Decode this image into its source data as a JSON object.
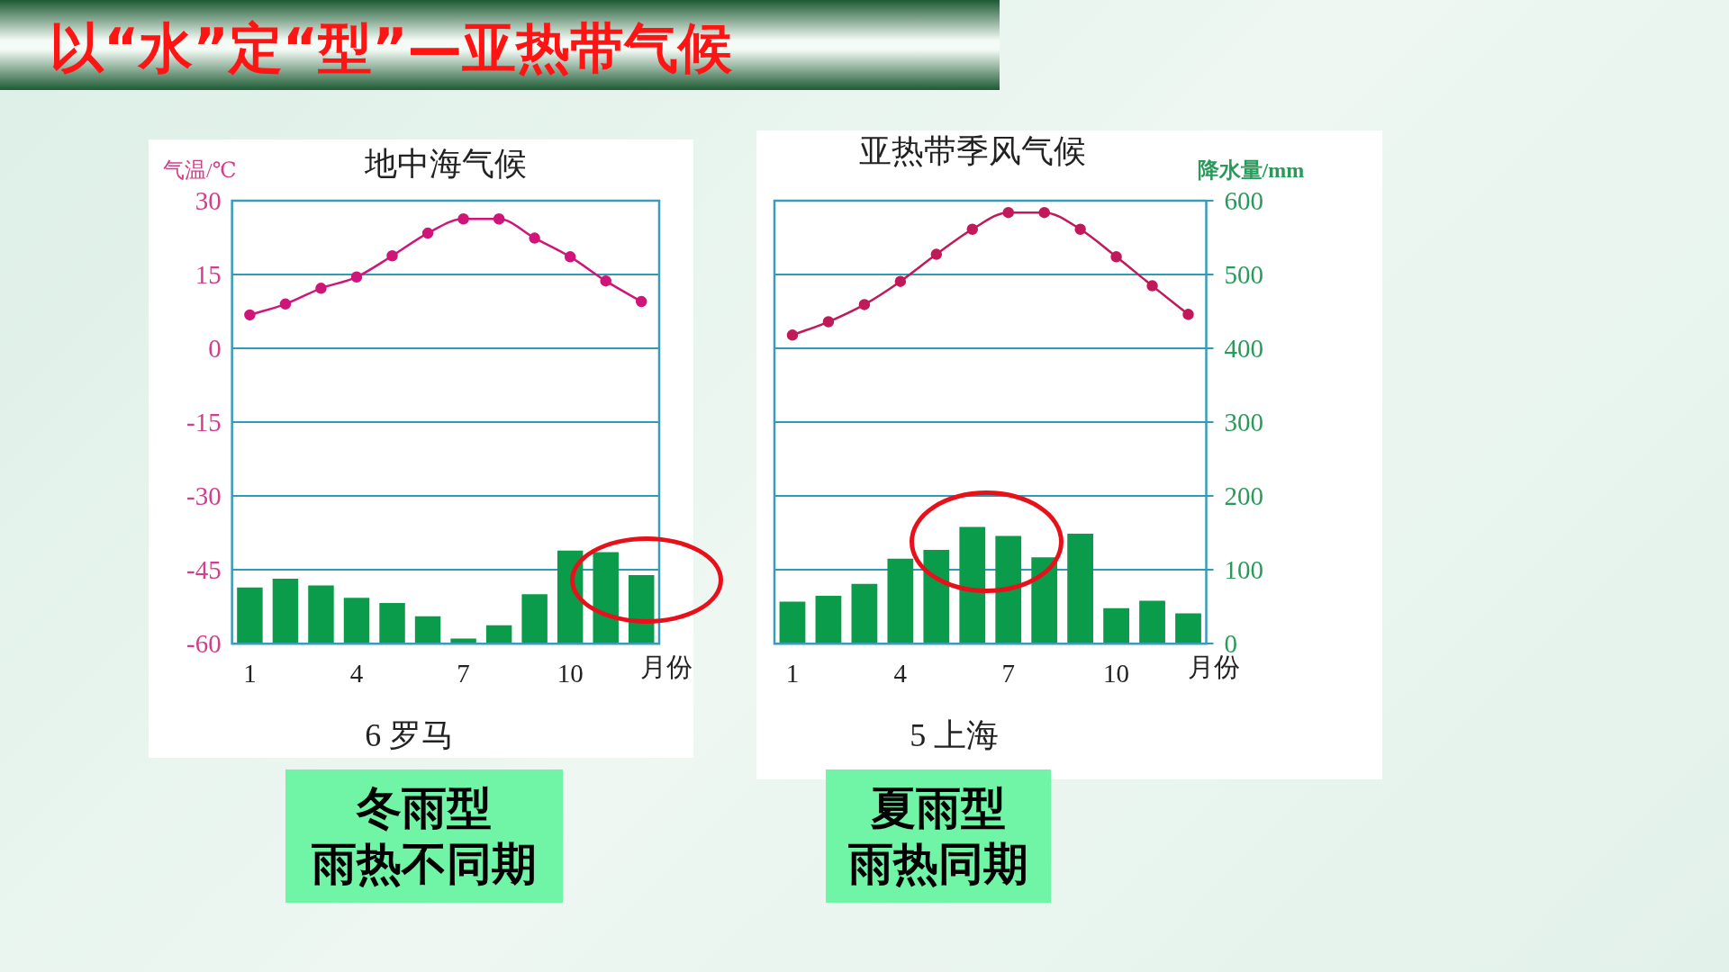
{
  "chart_data": [
    {
      "type": "bar",
      "title": "地中海气候",
      "ylabel": "气温/℃",
      "xlabel": "月份",
      "categories": [
        "1",
        null,
        null,
        "4",
        null,
        null,
        "7",
        null,
        null,
        "10",
        null,
        null
      ],
      "series": [
        {
          "axis": "y2",
          "color": "#0a9b4b",
          "values": [
            76,
            88,
            79,
            62,
            55,
            37,
            7,
            25,
            67,
            126,
            124,
            93
          ]
        },
        {
          "type": "line",
          "color": "#d0157a",
          "values": [
            6.8,
            9.0,
            12.2,
            14.5,
            18.8,
            23.4,
            26.3,
            26.3,
            22.4,
            18.6,
            13.7,
            9.5
          ]
        }
      ],
      "ylim": [
        -60,
        30
      ],
      "yticks": [
        -60,
        -45,
        -30,
        -15,
        0,
        15,
        30
      ],
      "y2lim": [
        0,
        600
      ],
      "grid": "y",
      "legend": false,
      "marker": "circle",
      "line_style": "solid",
      "annotations": [
        "以“水”定“型”—亚热带气候",
        "6 罗马",
        "冬雨型",
        "雨热不同期"
      ]
    },
    {
      "type": "bar",
      "title": "亚热带季风气候",
      "y2label": "降水量/mm",
      "xlabel": "月份",
      "categories": [
        "1",
        null,
        null,
        "4",
        null,
        null,
        "7",
        null,
        null,
        "10",
        null,
        null
      ],
      "series": [
        {
          "axis": "y2",
          "color": "#0a9b4b",
          "values": [
            57,
            65,
            81,
            115,
            127,
            158,
            146,
            117,
            149,
            48,
            58,
            41
          ]
        },
        {
          "type": "line",
          "color": "#c01a5a",
          "values": [
            2.7,
            5.4,
            8.9,
            13.6,
            19.1,
            24.2,
            27.6,
            27.6,
            24.2,
            18.6,
            12.7,
            6.9
          ]
        }
      ],
      "ylim": [
        -60,
        30
      ],
      "y2lim": [
        0,
        600
      ],
      "y2ticks": [
        0,
        100,
        200,
        300,
        400,
        500,
        600
      ],
      "grid": "y",
      "legend": false,
      "marker": "circle",
      "line_style": "solid",
      "annotations": [
        "5 上海",
        "夏雨型",
        "雨热同期"
      ]
    }
  ]
}
